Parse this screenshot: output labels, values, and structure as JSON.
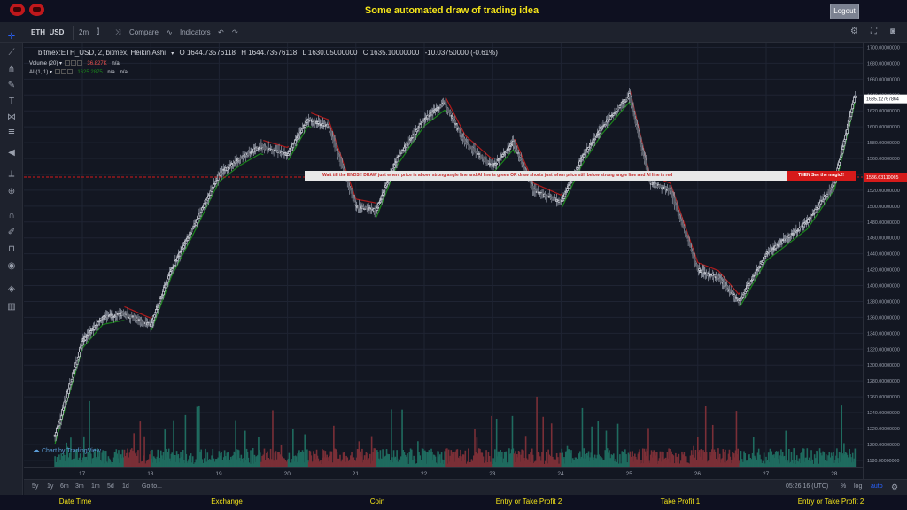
{
  "app": {
    "title": "Some automated draw of trading idea",
    "logout_label": "Logout"
  },
  "toolbar": {
    "symbol": "ETH_USD",
    "interval": "2m",
    "compare_label": "Compare",
    "indicators_label": "Indicators"
  },
  "legend": {
    "main": "bitmex:ETH_USD, 2, bitmex, Heikin Ashi",
    "open": "O 1644.73576118",
    "high": "H 1644.73576118",
    "low": "L 1630.05000000",
    "close": "C 1635.10000000",
    "change": "-10.03750000 (-0.61%)",
    "volume_label": "Volume (20)",
    "volume_value": "36.827K",
    "volume_na": "n/a",
    "ai_label": "AI (1, 1)",
    "ai_value": "1625.2875",
    "ai_na1": "n/a",
    "ai_na2": "n/a"
  },
  "banner": {
    "text": "Wait till the ENDS !   DRAW just when:  price is above strong angle line and AI line is green          OR         draw shorts just when price still below strong angle line and AI line is red",
    "cta": "THEN See the magic!!",
    "price": "1536.63110065"
  },
  "price_axis": {
    "current_price": "1635.12767864",
    "labels": [
      "1700.00000000",
      "1680.00000000",
      "1660.00000000",
      "1640.00000000",
      "1620.00000000",
      "1600.00000000",
      "1580.00000000",
      "1560.00000000",
      "1540.00000000",
      "1520.00000000",
      "1500.00000000",
      "1480.00000000",
      "1460.00000000",
      "1440.00000000",
      "1420.00000000",
      "1400.00000000",
      "1380.00000000",
      "1360.00000000",
      "1340.00000000",
      "1320.00000000",
      "1300.00000000",
      "1280.00000000",
      "1260.00000000",
      "1240.00000000",
      "1220.00000000",
      "1200.00000000",
      "1180.00000000"
    ]
  },
  "time_axis": {
    "labels": [
      "17",
      "18",
      "19",
      "20",
      "21",
      "22",
      "23",
      "24",
      "25",
      "26",
      "27",
      "28"
    ]
  },
  "watermark": "Chart by TradingView",
  "bottom": {
    "ranges": [
      "5y",
      "1y",
      "6m",
      "3m",
      "1m",
      "5d",
      "1d"
    ],
    "goto": "Go to...",
    "clock": "05:26:16 (UTC)",
    "percent": "%",
    "log": "log",
    "auto": "auto"
  },
  "footer": {
    "tabs": [
      "Date Time",
      "Exchange",
      "Coin",
      "Entry or Take Profit 2",
      "Take Profit 1",
      "Entry or Take Profit 2"
    ]
  },
  "colors": {
    "up": "#26a69a",
    "down": "#ef5350",
    "ai_up": "#1b8a1b",
    "ai_down": "#b71c1c",
    "title": "#f5e51a"
  },
  "chart_data": {
    "type": "candlestick",
    "series": [
      {
        "name": "",
        "x": [
          16.6,
          17.0,
          17.3,
          17.6,
          18.0,
          18.3,
          18.6,
          19.0,
          19.3,
          19.6,
          20.0,
          20.3,
          20.6,
          21.0,
          21.3,
          21.6,
          22.0,
          22.3,
          22.6,
          23.0,
          23.3,
          23.6,
          24.0,
          24.3,
          24.6,
          25.0,
          25.3,
          25.6,
          26.0,
          26.3,
          26.6,
          27.0,
          27.3,
          27.6,
          28.0,
          28.3
        ],
        "y": [
          1210,
          1330,
          1360,
          1365,
          1350,
          1420,
          1470,
          1540,
          1560,
          1575,
          1565,
          1610,
          1600,
          1500,
          1495,
          1560,
          1610,
          1630,
          1580,
          1550,
          1580,
          1520,
          1505,
          1560,
          1600,
          1640,
          1530,
          1520,
          1420,
          1410,
          1380,
          1440,
          1460,
          1480,
          1530,
          1640
        ]
      }
    ],
    "ylim": [
      1172,
      1705
    ],
    "ylabel": "",
    "xlabel": ""
  }
}
